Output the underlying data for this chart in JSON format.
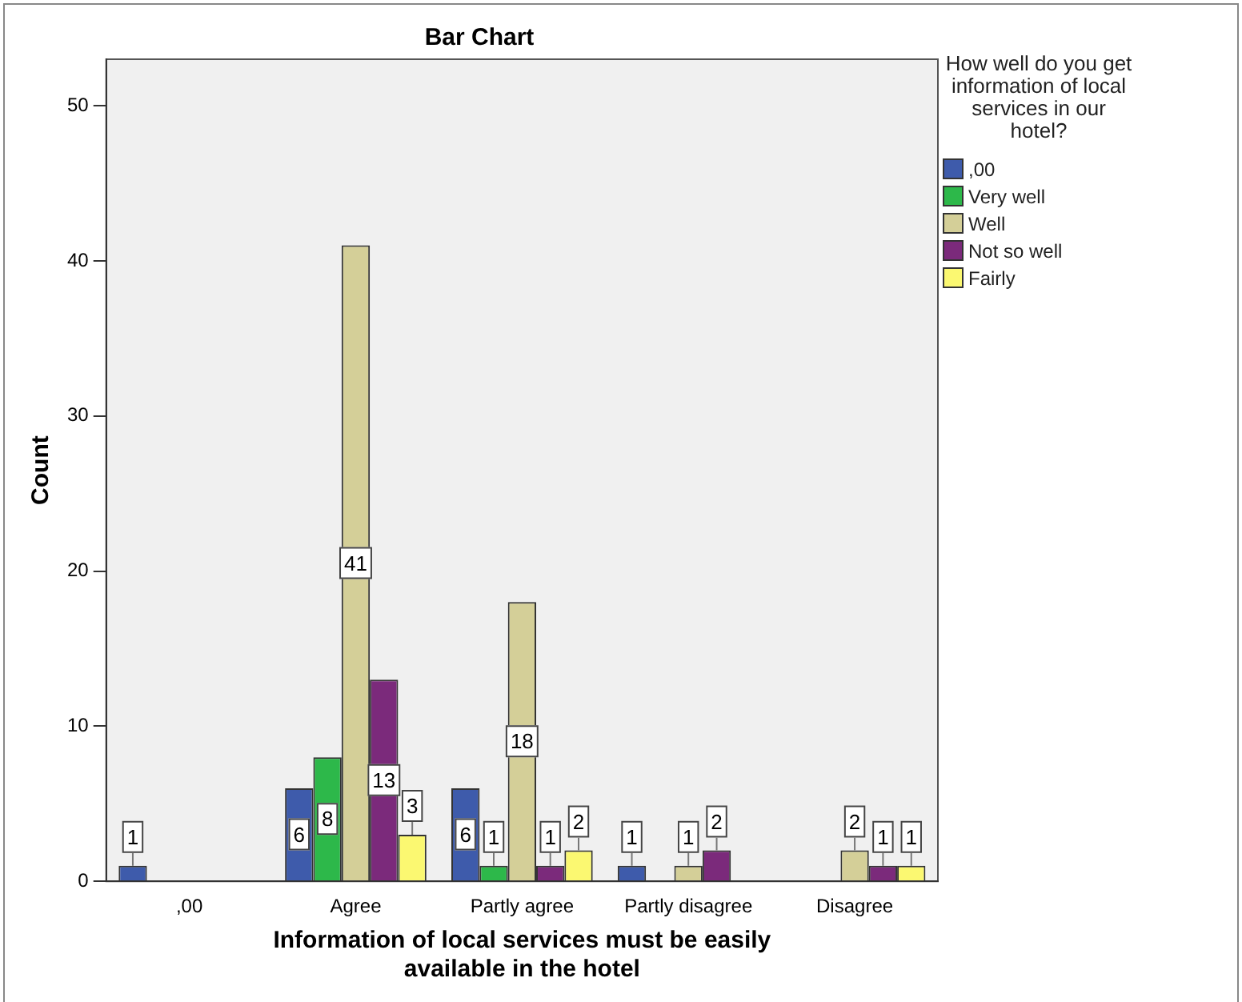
{
  "chart_data": {
    "type": "bar",
    "title": "Bar Chart",
    "xlabel": "Information of local services must be easily available in the hotel",
    "ylabel": "Count",
    "legend_title": "How well do you get information of local services in our hotel?",
    "legend": "right",
    "categories": [
      ",00",
      "Agree",
      "Partly agree",
      "Partly disagree",
      "Disagree"
    ],
    "series": [
      {
        "name": ",00",
        "color": "#3e5bab",
        "values": [
          1,
          6,
          6,
          1,
          null
        ]
      },
      {
        "name": "Very well",
        "color": "#2db84a",
        "values": [
          null,
          8,
          1,
          null,
          null
        ]
      },
      {
        "name": "Well",
        "color": "#d4cf98",
        "values": [
          null,
          41,
          18,
          1,
          2
        ]
      },
      {
        "name": "Not so well",
        "color": "#7b2a7b",
        "values": [
          null,
          13,
          1,
          2,
          1
        ]
      },
      {
        "name": "Fairly",
        "color": "#fbf871",
        "values": [
          null,
          3,
          2,
          null,
          1
        ]
      }
    ],
    "ylim": [
      0,
      53
    ],
    "yticks": [
      0,
      10,
      20,
      30,
      40,
      50
    ],
    "grid": false,
    "data_labels": true
  }
}
